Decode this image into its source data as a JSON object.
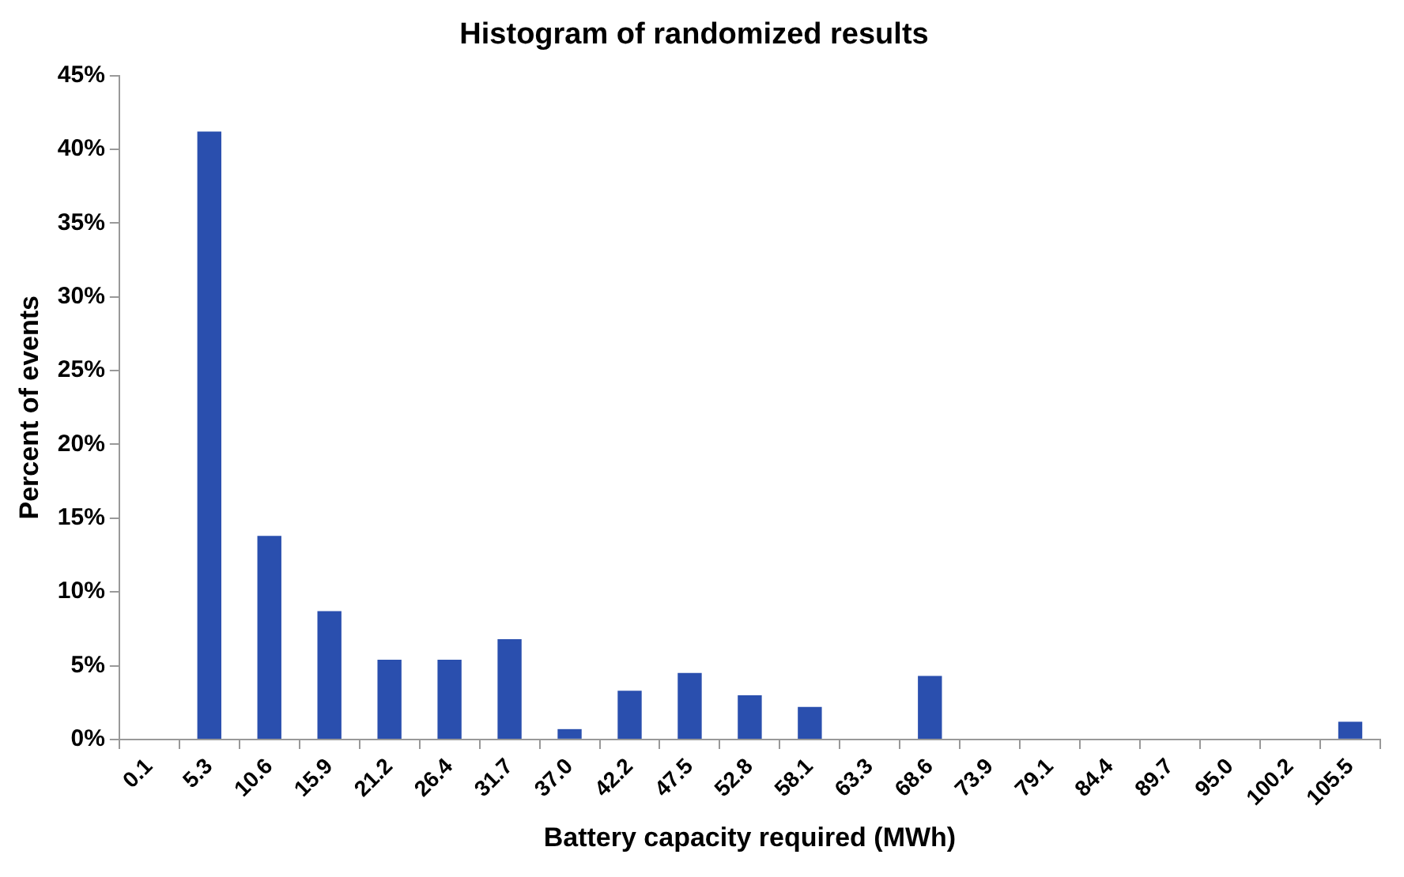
{
  "chart_data": {
    "type": "bar",
    "title": "Histogram of randomized results",
    "xlabel": "Battery capacity required (MWh)",
    "ylabel": "Percent of events",
    "categories": [
      "0.1",
      "5.3",
      "10.6",
      "15.9",
      "21.2",
      "26.4",
      "31.7",
      "37.0",
      "42.2",
      "47.5",
      "52.8",
      "58.1",
      "63.3",
      "68.6",
      "73.9",
      "79.1",
      "84.4",
      "89.7",
      "95.0",
      "100.2",
      "105.5"
    ],
    "values": [
      0,
      41.2,
      13.8,
      8.7,
      5.4,
      5.4,
      6.8,
      0.7,
      3.3,
      4.5,
      3.0,
      2.2,
      0,
      4.3,
      0,
      0,
      0,
      0,
      0,
      0,
      1.2
    ],
    "color": "#2a4fae",
    "ylim": [
      0,
      45
    ],
    "yticks": [
      {
        "value": 0,
        "label": "0%"
      },
      {
        "value": 5,
        "label": "5%"
      },
      {
        "value": 10,
        "label": "10%"
      },
      {
        "value": 15,
        "label": "15%"
      },
      {
        "value": 20,
        "label": "20%"
      },
      {
        "value": 25,
        "label": "25%"
      },
      {
        "value": 30,
        "label": "30%"
      },
      {
        "value": 35,
        "label": "35%"
      },
      {
        "value": 40,
        "label": "40%"
      },
      {
        "value": 45,
        "label": "45%"
      }
    ],
    "grid": false,
    "legend": false
  }
}
